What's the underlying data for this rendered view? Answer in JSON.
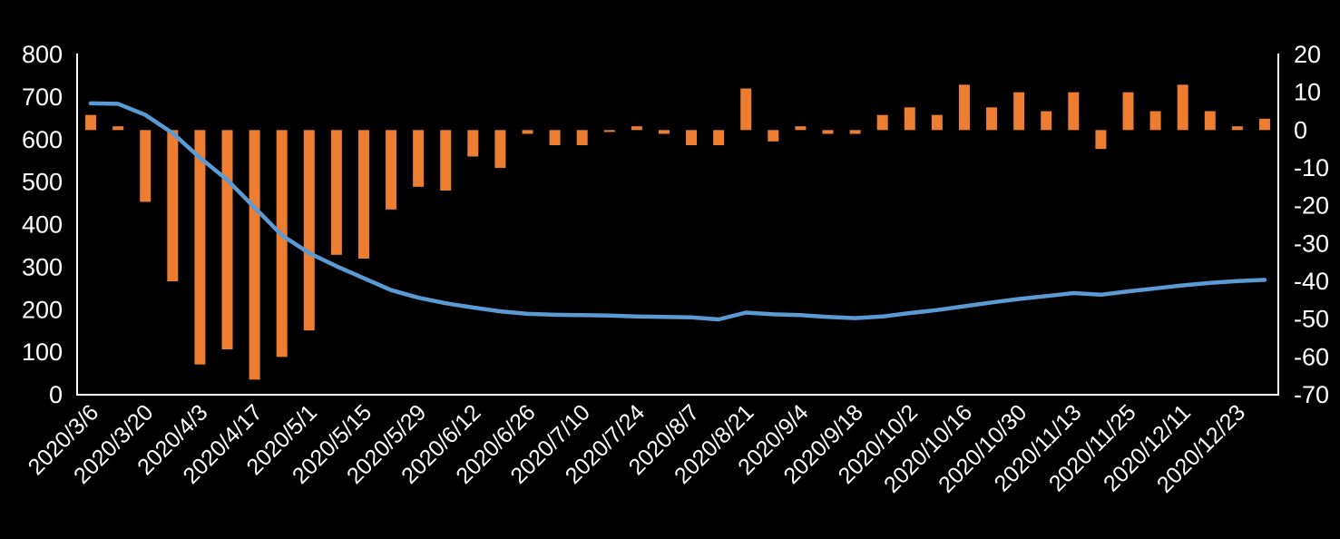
{
  "chart_data": {
    "type": "combo",
    "title": "",
    "legend": "none",
    "gridlines": false,
    "background_color": "#000000",
    "text_color": "#FFFFFF",
    "axis_line_color": "#FFFFFF",
    "n_points": 44,
    "label_every": 2,
    "x_labels": [
      "2020/3/6",
      "2020/3/20",
      "2020/4/3",
      "2020/4/17",
      "2020/5/1",
      "2020/5/15",
      "2020/5/29",
      "2020/6/12",
      "2020/6/26",
      "2020/7/10",
      "2020/7/24",
      "2020/8/7",
      "2020/8/21",
      "2020/9/4",
      "2020/9/18",
      "2020/10/2",
      "2020/10/16",
      "2020/10/30",
      "2020/11/13",
      "2020/11/25",
      "2020/12/11",
      "2020/12/23"
    ],
    "left_axis": {
      "min": 0,
      "max": 800,
      "tick_step": 100,
      "ticks": [
        "800",
        "700",
        "600",
        "500",
        "400",
        "300",
        "200",
        "100",
        "0"
      ]
    },
    "right_axis": {
      "min": -70,
      "max": 20,
      "tick_step": 10,
      "ticks": [
        "20",
        "10",
        "0",
        "-10",
        "-20",
        "-30",
        "-40",
        "-50",
        "-60",
        "-70"
      ]
    },
    "series": [
      {
        "name": "bars",
        "type": "bar",
        "axis": "right",
        "color": "#ED7D31",
        "values": [
          4,
          1,
          -19,
          -40,
          -62,
          -58,
          -66,
          -60,
          -53,
          -33,
          -34,
          -21,
          -15,
          -16,
          -7,
          -10,
          -1,
          -4,
          -4,
          -0.5,
          1,
          -1,
          -4,
          -4,
          11,
          -3,
          1,
          -1,
          -1,
          4,
          6,
          4,
          12,
          6,
          10,
          5,
          10,
          -5,
          10,
          5,
          12,
          5,
          1,
          3
        ]
      },
      {
        "name": "line",
        "type": "line",
        "axis": "left",
        "color": "#5B9BD5",
        "values": [
          685,
          684,
          658,
          615,
          557,
          505,
          440,
          375,
          333,
          302,
          274,
          246,
          228,
          215,
          205,
          196,
          190,
          188,
          187,
          186,
          184,
          183,
          182,
          177,
          193,
          189,
          187,
          183,
          180,
          184,
          192,
          199,
          208,
          217,
          225,
          232,
          239,
          235,
          243,
          250,
          257,
          263,
          267,
          270
        ]
      }
    ]
  }
}
